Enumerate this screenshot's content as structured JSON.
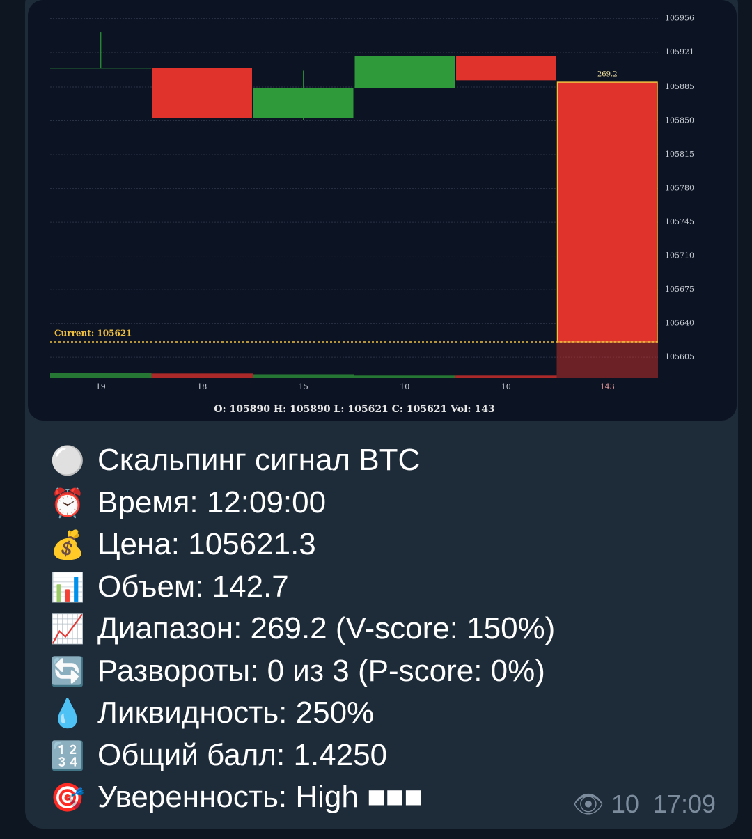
{
  "chart_data": {
    "type": "candlestick",
    "candles": {
      "open": [
        105905,
        105905,
        105853,
        105884,
        105917,
        105890
      ],
      "high": [
        105942,
        105905,
        105902,
        105917,
        105917,
        105890
      ],
      "low": [
        105905,
        105853,
        105851,
        105884,
        105892,
        105621
      ],
      "close": [
        105905,
        105853,
        105884,
        105917,
        105892,
        105621
      ]
    },
    "volume": [
      19,
      18,
      15,
      10,
      10,
      143
    ],
    "up_color": "#2f9a3a",
    "down_color": "#e0332c",
    "ylim": [
      105582,
      105968
    ],
    "yticks": [
      105605,
      105640,
      105675,
      105710,
      105745,
      105780,
      105815,
      105850,
      105885,
      105921,
      105956
    ],
    "grid": true,
    "current_price": 105621,
    "current_label": "Current: 105621",
    "range_label": 269.2,
    "info": "O: 105890  H: 105890  L: 105621  C: 105621  Vol: 143"
  },
  "message": {
    "lines": [
      {
        "icon": "⚪",
        "text": "Скальпинг сигнал BTC"
      },
      {
        "icon": "⏰",
        "text": "Время: 12:09:00"
      },
      {
        "icon": "💰",
        "text": "Цена: 105621.3"
      },
      {
        "icon": "📊",
        "text": "Объем: 142.7"
      },
      {
        "icon": "📈",
        "text": "Диапазон: 269.2 (V-score: 150%)"
      },
      {
        "icon": "🔄",
        "text": "Развороты: 0 из 3 (P-score: 0%)"
      },
      {
        "icon": "💧",
        "text": "Ликвидность: 250%"
      },
      {
        "icon": "🔢",
        "text": "Общий балл: 1.4250"
      },
      {
        "icon": "🎯",
        "text": "Уверенность: High ■■■"
      }
    ],
    "views": "10",
    "time": "17:09"
  }
}
